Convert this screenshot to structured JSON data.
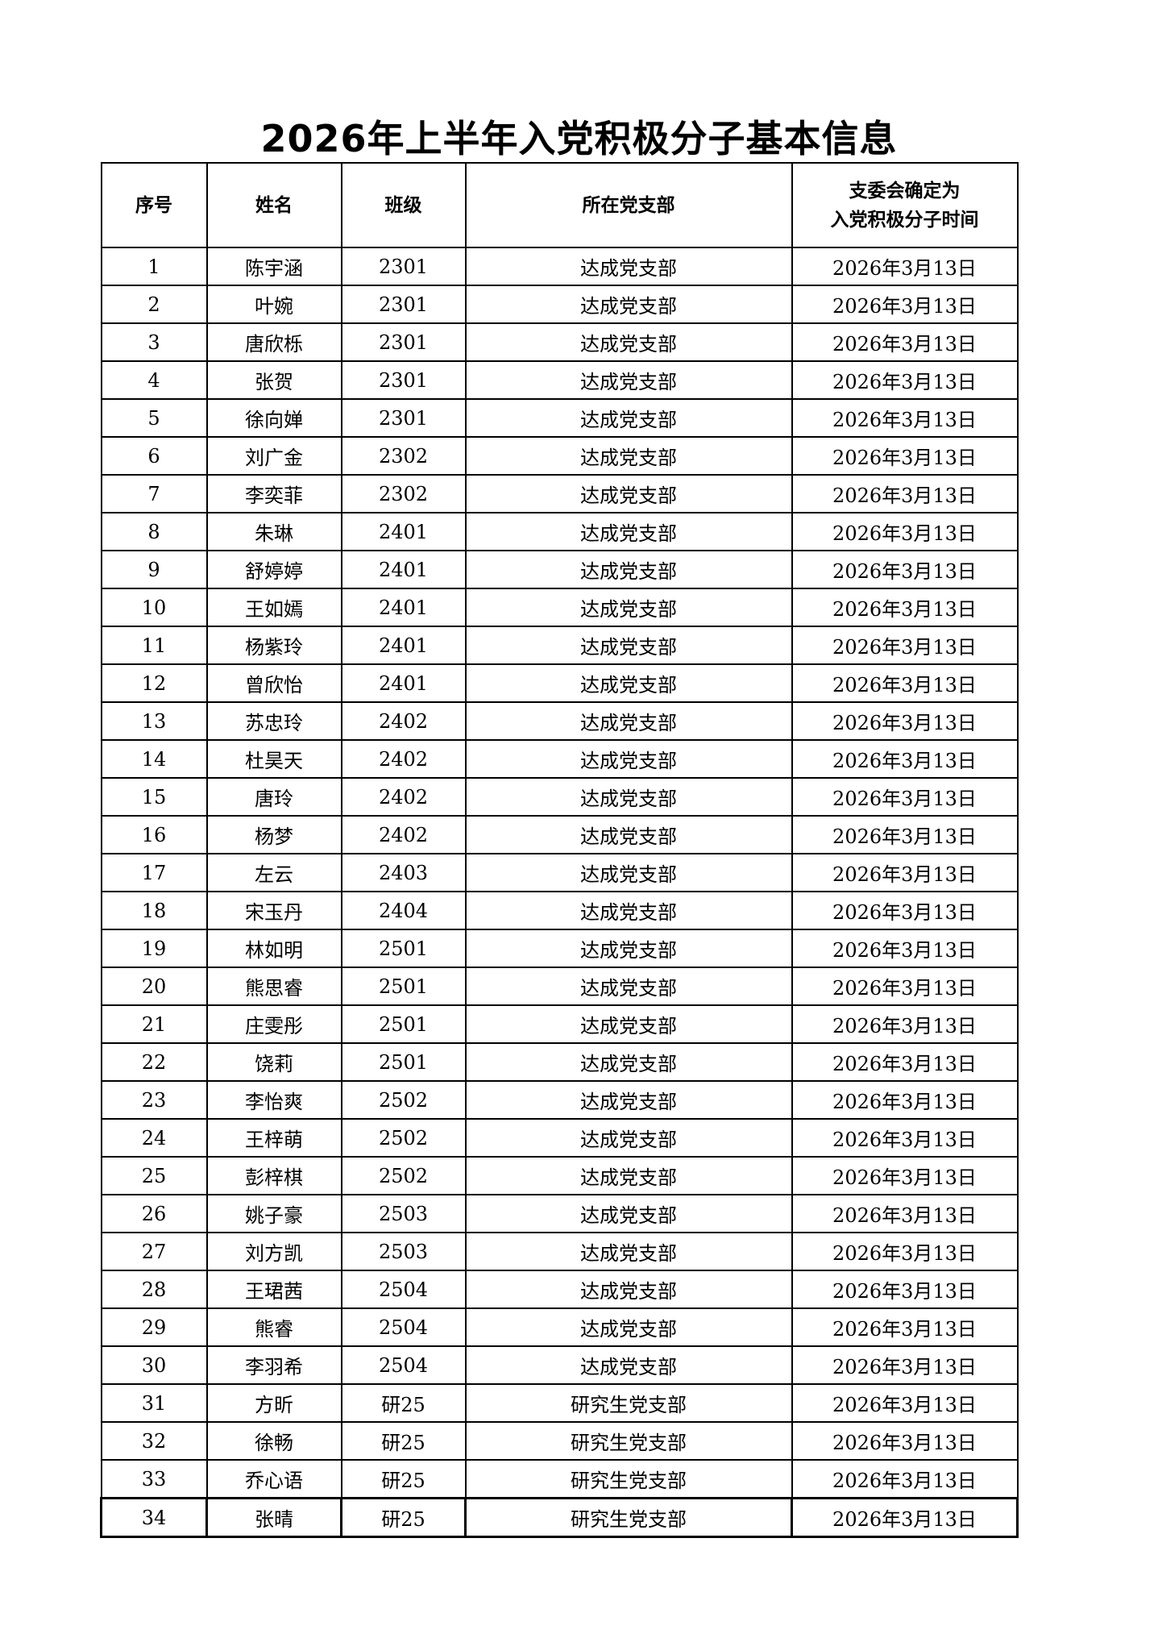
{
  "title": "2026年上半年入党积极分子基本信息",
  "headers": [
    "序号",
    "姓名",
    "班级",
    "所在党支部",
    "支委会确定为\n入党积极分子时间"
  ],
  "rows": [
    [
      "1",
      "陈宇涵",
      "2301",
      "达成党支部",
      "2026年3月13日"
    ],
    [
      "2",
      "叶婉",
      "2301",
      "达成党支部",
      "2026年3月13日"
    ],
    [
      "3",
      "唐欣栎",
      "2301",
      "达成党支部",
      "2026年3月13日"
    ],
    [
      "4",
      "张贺",
      "2301",
      "达成党支部",
      "2026年3月13日"
    ],
    [
      "5",
      "徐向婵",
      "2301",
      "达成党支部",
      "2026年3月13日"
    ],
    [
      "6",
      "刘广金",
      "2302",
      "达成党支部",
      "2026年3月13日"
    ],
    [
      "7",
      "李奕菲",
      "2302",
      "达成党支部",
      "2026年3月13日"
    ],
    [
      "8",
      "朱琳",
      "2401",
      "达成党支部",
      "2026年3月13日"
    ],
    [
      "9",
      "舒婷婷",
      "2401",
      "达成党支部",
      "2026年3月13日"
    ],
    [
      "10",
      "王如嫣",
      "2401",
      "达成党支部",
      "2026年3月13日"
    ],
    [
      "11",
      "杨紫玲",
      "2401",
      "达成党支部",
      "2026年3月13日"
    ],
    [
      "12",
      "曾欣怡",
      "2401",
      "达成党支部",
      "2026年3月13日"
    ],
    [
      "13",
      "苏忠玲",
      "2402",
      "达成党支部",
      "2026年3月13日"
    ],
    [
      "14",
      "杜昊天",
      "2402",
      "达成党支部",
      "2026年3月13日"
    ],
    [
      "15",
      "唐玲",
      "2402",
      "达成党支部",
      "2026年3月13日"
    ],
    [
      "16",
      "杨梦",
      "2402",
      "达成党支部",
      "2026年3月13日"
    ],
    [
      "17",
      "左云",
      "2403",
      "达成党支部",
      "2026年3月13日"
    ],
    [
      "18",
      "宋玉丹",
      "2404",
      "达成党支部",
      "2026年3月13日"
    ],
    [
      "19",
      "林如明",
      "2501",
      "达成党支部",
      "2026年3月13日"
    ],
    [
      "20",
      "熊思睿",
      "2501",
      "达成党支部",
      "2026年3月13日"
    ],
    [
      "21",
      "庄雯彤",
      "2501",
      "达成党支部",
      "2026年3月13日"
    ],
    [
      "22",
      "饶莉",
      "2501",
      "达成党支部",
      "2026年3月13日"
    ],
    [
      "23",
      "李怡爽",
      "2502",
      "达成党支部",
      "2026年3月13日"
    ],
    [
      "24",
      "王梓萌",
      "2502",
      "达成党支部",
      "2026年3月13日"
    ],
    [
      "25",
      "彭梓棋",
      "2502",
      "达成党支部",
      "2026年3月13日"
    ],
    [
      "26",
      "姚子豪",
      "2503",
      "达成党支部",
      "2026年3月13日"
    ],
    [
      "27",
      "刘方凯",
      "2503",
      "达成党支部",
      "2026年3月13日"
    ],
    [
      "28",
      "王珺茜",
      "2504",
      "达成党支部",
      "2026年3月13日"
    ],
    [
      "29",
      "熊睿",
      "2504",
      "达成党支部",
      "2026年3月13日"
    ],
    [
      "30",
      "李羽希",
      "2504",
      "达成党支部",
      "2026年3月13日"
    ],
    [
      "31",
      "方昕",
      "研25",
      "研究生党支部",
      "2026年3月13日"
    ],
    [
      "32",
      "徐畅",
      "研25",
      "研究生党支部",
      "2026年3月13日"
    ],
    [
      "33",
      "乔心语",
      "研25",
      "研究生党支部",
      "2026年3月13日"
    ],
    [
      "34",
      "张晴",
      "研25",
      "研究生党支部",
      "2026年3月13日"
    ]
  ]
}
